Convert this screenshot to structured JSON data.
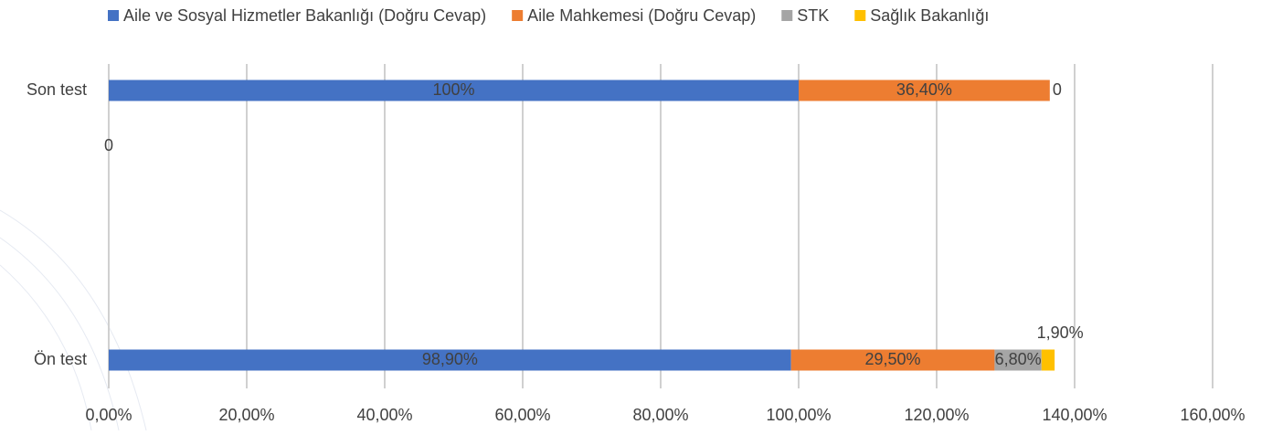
{
  "chart_data": {
    "type": "stacked-bar-horizontal",
    "categories": [
      "Son test",
      "Ön test"
    ],
    "series": [
      {
        "name": "Aile ve Sosyal Hizmetler Bakanlığı (Doğru Cevap)",
        "color": "#4472c4",
        "values": [
          100,
          98.9
        ],
        "value_labels": [
          "100%",
          "98,90%"
        ]
      },
      {
        "name": "Aile Mahkemesi (Doğru Cevap)",
        "color": "#ed7d31",
        "values": [
          36.4,
          29.5
        ],
        "value_labels": [
          "36,40%",
          "29,50%"
        ]
      },
      {
        "name": "STK",
        "color": "#a5a5a5",
        "values": [
          0,
          6.8
        ],
        "value_labels": [
          "0",
          "6,80%"
        ]
      },
      {
        "name": "Sağlık Bakanlığı",
        "color": "#ffc000",
        "values": [
          0,
          1.9
        ],
        "value_labels": [
          "0",
          "1,90%"
        ]
      }
    ],
    "xlim": [
      0,
      160
    ],
    "xticks": [
      {
        "value": 0,
        "label": "0,00%"
      },
      {
        "value": 20,
        "label": "20,00%"
      },
      {
        "value": 40,
        "label": "40,00%"
      },
      {
        "value": 60,
        "label": "60,00%"
      },
      {
        "value": 80,
        "label": "80,00%"
      },
      {
        "value": 100,
        "label": "100,00%"
      },
      {
        "value": 120,
        "label": "120,00%"
      },
      {
        "value": 140,
        "label": "140,00%"
      },
      {
        "value": 160,
        "label": "160,00%"
      }
    ],
    "grid": true,
    "legend": "top"
  }
}
